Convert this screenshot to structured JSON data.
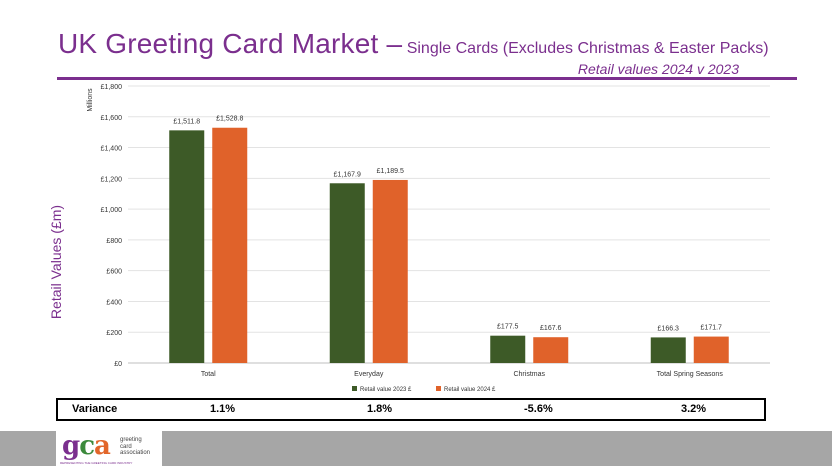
{
  "title": {
    "main": "UK Greeting Card Market –",
    "sub": "Single Cards (Excludes Christmas & Easter Packs)",
    "subtitle": "Retail values 2024 v 2023"
  },
  "y_axis_title": "Retail Values (£m)",
  "chart_data": {
    "type": "bar",
    "title": "UK Greeting Card Market – Single Cards (Excludes Christmas & Easter Packs)",
    "ylabel": "Retail Values (£m)",
    "units_label": "Millions",
    "categories": [
      "Total",
      "Everyday",
      "Christmas",
      "Total Spring Seasons"
    ],
    "series": [
      {
        "name": "Retail value 2023 £",
        "color": "#3d5a27",
        "values": [
          1511.8,
          1167.9,
          177.5,
          166.3
        ],
        "labels": [
          "£1,511.8",
          "£1,167.9",
          "£177.5",
          "£166.3"
        ]
      },
      {
        "name": "Retail value 2024 £",
        "color": "#e0622a",
        "values": [
          1528.8,
          1189.5,
          167.6,
          171.7
        ],
        "labels": [
          "£1,528.8",
          "£1,189.5",
          "£167.6",
          "£171.7"
        ]
      }
    ],
    "ylim": [
      0,
      1800
    ],
    "yticks": [
      0,
      200,
      400,
      600,
      800,
      1000,
      1200,
      1400,
      1600,
      1800
    ],
    "ytick_labels": [
      "£0",
      "£200",
      "£400",
      "£600",
      "£800",
      "£1,000",
      "£1,200",
      "£1,400",
      "£1,600",
      "£1,800"
    ],
    "grid": true,
    "legend_position": "bottom"
  },
  "variance": {
    "label": "Variance",
    "values": [
      "1.1%",
      "1.8%",
      "-5.6%",
      "3.2%"
    ]
  },
  "logo": {
    "letters": [
      "g",
      "c",
      "a"
    ],
    "words": [
      "greeting",
      "card",
      "association"
    ],
    "strapline": "REPRESENTING THE GREETING CARD INDUSTRY"
  }
}
